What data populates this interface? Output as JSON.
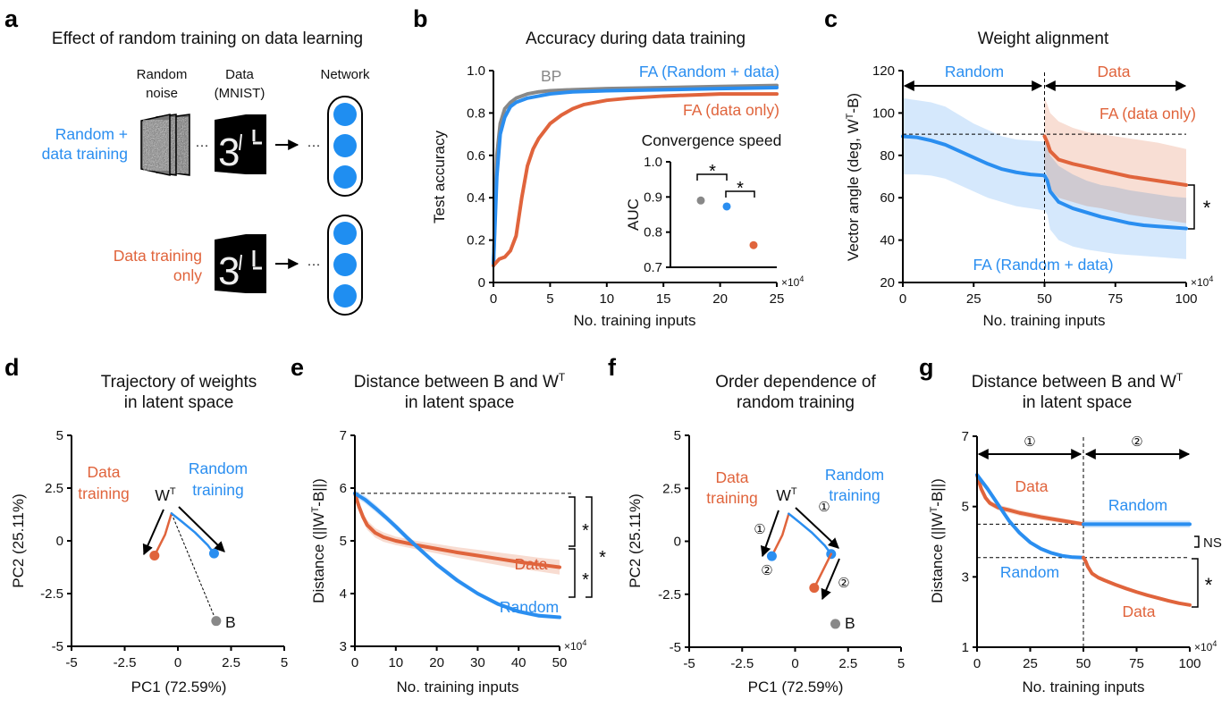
{
  "colors": {
    "blue": "#2a8ef0",
    "orange": "#e0643c",
    "gray": "#888888",
    "blue_band": "#c7e0fb",
    "orange_band": "#f6d3c5"
  },
  "panel_a": {
    "letter": "a",
    "title": "Effect of random training on data learning",
    "col_random_noise": [
      "Random",
      "noise"
    ],
    "col_data": [
      "Data",
      "(MNIST)"
    ],
    "col_network": "Network",
    "row1_label": [
      "Random +",
      "data training"
    ],
    "row2_label": [
      "Data training",
      "only"
    ],
    "ellipsis": "···"
  },
  "chart_data": [
    {
      "panel": "b",
      "type": "line",
      "title": "Accuracy during data training",
      "xlabel": "No. training inputs",
      "ylabel": "Test accuracy",
      "x_multiplier": "×10",
      "x_multiplier_exp": "4",
      "xlim": [
        0,
        25
      ],
      "ylim": [
        0,
        1
      ],
      "xticks": [
        0,
        5,
        10,
        15,
        20,
        25
      ],
      "xtick_labels": [
        "0",
        "5",
        "10",
        "15",
        "20",
        "25"
      ],
      "yticks": [
        0,
        0.2,
        0.4,
        0.6,
        0.8,
        1.0
      ],
      "ytick_labels": [
        "0",
        "0.2",
        "0.4",
        "0.6",
        "0.8",
        "1.0"
      ],
      "series": [
        {
          "name": "BP",
          "color": "gray",
          "x": [
            0,
            0.3,
            0.6,
            1,
            1.5,
            2,
            3,
            4,
            5,
            7,
            10,
            15,
            20,
            25
          ],
          "y": [
            0.08,
            0.6,
            0.75,
            0.82,
            0.85,
            0.87,
            0.89,
            0.9,
            0.905,
            0.91,
            0.915,
            0.92,
            0.925,
            0.93
          ]
        },
        {
          "name": "FA (Random + data)",
          "color": "blue",
          "x": [
            0,
            0.3,
            0.6,
            1,
            1.5,
            2,
            3,
            4,
            5,
            7,
            10,
            15,
            20,
            25
          ],
          "y": [
            0.08,
            0.5,
            0.7,
            0.78,
            0.83,
            0.85,
            0.87,
            0.88,
            0.89,
            0.9,
            0.905,
            0.91,
            0.915,
            0.92
          ]
        },
        {
          "name": "FA (data only)",
          "color": "orange",
          "x": [
            0,
            0.5,
            1,
            1.5,
            2,
            2.5,
            3,
            3.5,
            4,
            5,
            6,
            7,
            8,
            10,
            12,
            15,
            20,
            25
          ],
          "y": [
            0.08,
            0.11,
            0.12,
            0.15,
            0.22,
            0.4,
            0.55,
            0.63,
            0.68,
            0.75,
            0.79,
            0.82,
            0.84,
            0.86,
            0.87,
            0.88,
            0.89,
            0.89
          ]
        }
      ],
      "inset": {
        "title": "Convergence speed",
        "ylabel": "AUC",
        "type": "scatter",
        "ylim": [
          0.7,
          1.0
        ],
        "yticks": [
          0.7,
          0.8,
          0.9,
          1.0
        ],
        "ytick_labels": [
          "0.7",
          "0.8",
          "0.9",
          "1.0"
        ],
        "points": [
          {
            "series": "BP",
            "color": "gray",
            "value": 0.89
          },
          {
            "series": "FA (Random + data)",
            "color": "blue",
            "value": 0.873
          },
          {
            "series": "FA (data only)",
            "color": "orange",
            "value": 0.763
          }
        ],
        "significance": [
          "*",
          "*"
        ]
      }
    },
    {
      "panel": "c",
      "type": "line",
      "title": "Weight alignment",
      "xlabel": "No. training inputs",
      "ylabel": "Vector angle (deg, W",
      "ylabel_sup": "T",
      "ylabel_end": "-B)",
      "x_multiplier": "×10",
      "x_multiplier_exp": "4",
      "xlim": [
        0,
        100
      ],
      "ylim": [
        20,
        120
      ],
      "xticks": [
        0,
        25,
        50,
        75,
        100
      ],
      "xtick_labels": [
        "0",
        "25",
        "50",
        "75",
        "100"
      ],
      "yticks": [
        20,
        40,
        60,
        80,
        100,
        120
      ],
      "ytick_labels": [
        "20",
        "40",
        "60",
        "80",
        "100",
        "120"
      ],
      "reference_line_y": 90,
      "phase_boundary_x": 50,
      "phases": [
        "Random",
        "Data"
      ],
      "series": [
        {
          "name": "FA (Random + data)",
          "color": "blue",
          "x": [
            0,
            5,
            10,
            15,
            20,
            25,
            30,
            35,
            40,
            45,
            50,
            51,
            52,
            55,
            60,
            65,
            70,
            75,
            80,
            85,
            90,
            95,
            100
          ],
          "y": [
            89,
            88.5,
            87,
            85,
            82,
            79,
            76,
            73.5,
            72,
            71,
            70.5,
            68,
            63,
            58,
            55,
            53,
            51,
            49.5,
            48,
            47,
            46.5,
            46,
            45.5
          ],
          "band_hi": [
            107,
            106,
            105,
            103,
            99,
            95,
            92,
            89,
            87.5,
            87,
            86.5,
            84,
            80,
            75,
            71,
            68,
            66,
            65,
            63.5,
            62.5,
            61.5,
            60.5,
            60
          ],
          "band_lo": [
            71,
            71,
            70.5,
            69,
            66,
            63,
            60,
            58,
            56,
            55,
            54,
            52,
            45,
            40,
            37,
            35.5,
            34.5,
            33.5,
            33,
            32.5,
            32,
            31.5,
            31
          ]
        },
        {
          "name": "FA (data only)",
          "color": "orange",
          "x": [
            50,
            51,
            52,
            55,
            60,
            65,
            70,
            75,
            80,
            85,
            90,
            95,
            100
          ],
          "y": [
            89,
            86,
            82,
            78,
            76,
            74.5,
            73,
            71.5,
            70,
            69,
            68,
            67,
            66
          ],
          "band_hi": [
            107,
            104,
            100,
            96,
            93,
            91,
            90,
            89,
            88,
            87,
            86,
            84.5,
            83
          ],
          "band_lo": [
            74,
            70,
            64,
            60,
            58,
            56,
            55,
            53.5,
            52,
            51,
            50,
            49,
            48
          ]
        }
      ],
      "significance": "*"
    },
    {
      "panel": "d",
      "type": "scatter",
      "title": [
        "Trajectory of weights",
        "in latent space"
      ],
      "xlabel": "PC1 (72.59%)",
      "ylabel": "PC2 (25.11%)",
      "xlim": [
        -5,
        5
      ],
      "ylim": [
        -5,
        5
      ],
      "xticks": [
        -5,
        -2.5,
        0,
        2.5,
        5
      ],
      "xtick_labels": [
        "-5",
        "-2.5",
        "0",
        "2.5",
        "5"
      ],
      "yticks": [
        -5,
        -2.5,
        0,
        2.5,
        5
      ],
      "ytick_labels": [
        "-5",
        "-2.5",
        "0",
        "2.5",
        "5"
      ],
      "start_label": "W",
      "start_label_sup": "T",
      "series": [
        {
          "name": "Data training",
          "color": "orange",
          "x": [
            -0.3,
            -0.6,
            -1.1
          ],
          "y": [
            1.3,
            0.3,
            -0.7
          ],
          "end_color": "orange"
        },
        {
          "name": "Random training",
          "color": "blue",
          "x": [
            -0.3,
            0.2,
            0.8,
            1.4,
            1.7
          ],
          "y": [
            1.3,
            0.9,
            0.4,
            -0.2,
            -0.6
          ],
          "end_color": "blue"
        }
      ],
      "target": {
        "label": "B",
        "x": 1.8,
        "y": -3.8,
        "color": "gray"
      }
    },
    {
      "panel": "e",
      "type": "line",
      "title": [
        "Distance between B and W",
        "in latent space"
      ],
      "title_sup": "T",
      "xlabel": "No. training inputs",
      "ylabel": "Distance (||W",
      "ylabel_sup": "T",
      "ylabel_end": "-B||)",
      "x_multiplier": "×10",
      "x_multiplier_exp": "4",
      "xlim": [
        0,
        50
      ],
      "ylim": [
        3,
        7
      ],
      "xticks": [
        0,
        10,
        20,
        30,
        40,
        50
      ],
      "xtick_labels": [
        "0",
        "10",
        "20",
        "30",
        "40",
        "50"
      ],
      "yticks": [
        3,
        4,
        5,
        6,
        7
      ],
      "ytick_labels": [
        "3",
        "4",
        "5",
        "6",
        "7"
      ],
      "reference_line_y": 5.9,
      "series": [
        {
          "name": "Data",
          "color": "orange",
          "x": [
            0,
            1,
            2,
            3,
            5,
            7,
            10,
            15,
            20,
            25,
            30,
            35,
            40,
            45,
            50
          ],
          "y": [
            5.9,
            5.65,
            5.45,
            5.3,
            5.15,
            5.07,
            5.0,
            4.92,
            4.85,
            4.78,
            4.72,
            4.66,
            4.6,
            4.55,
            4.5
          ],
          "band_hi": [
            5.95,
            5.72,
            5.53,
            5.39,
            5.24,
            5.16,
            5.08,
            5.0,
            4.94,
            4.88,
            4.83,
            4.78,
            4.73,
            4.68,
            4.64
          ],
          "band_lo": [
            5.85,
            5.58,
            5.37,
            5.21,
            5.06,
            4.98,
            4.92,
            4.84,
            4.76,
            4.68,
            4.61,
            4.54,
            4.47,
            4.42,
            4.36
          ]
        },
        {
          "name": "Random",
          "color": "blue",
          "x": [
            0,
            2.5,
            5,
            7.5,
            10,
            12.5,
            15,
            20,
            25,
            30,
            35,
            40,
            45,
            50
          ],
          "y": [
            5.9,
            5.78,
            5.62,
            5.45,
            5.27,
            5.08,
            4.9,
            4.55,
            4.25,
            4.0,
            3.8,
            3.66,
            3.58,
            3.55
          ],
          "band_hi": [
            5.97,
            5.85,
            5.69,
            5.51,
            5.33,
            5.14,
            4.95,
            4.6,
            4.3,
            4.04,
            3.84,
            3.7,
            3.62,
            3.58
          ],
          "band_lo": [
            5.83,
            5.71,
            5.55,
            5.39,
            5.21,
            5.02,
            4.85,
            4.5,
            4.2,
            3.96,
            3.76,
            3.62,
            3.54,
            3.52
          ]
        }
      ],
      "significance": [
        "*",
        "*",
        "*"
      ]
    },
    {
      "panel": "f",
      "type": "scatter",
      "title": [
        "Order dependence of",
        "random training"
      ],
      "xlabel": "PC1 (72.59%)",
      "ylabel": "PC2 (25.11%)",
      "xlim": [
        -5,
        5
      ],
      "ylim": [
        -5,
        5
      ],
      "xticks": [
        -5,
        -2.5,
        0,
        2.5,
        5
      ],
      "xtick_labels": [
        "-5",
        "-2.5",
        "0",
        "2.5",
        "5"
      ],
      "yticks": [
        -5,
        -2.5,
        0,
        2.5,
        5
      ],
      "ytick_labels": [
        "-5",
        "-2.5",
        "0",
        "2.5",
        "5"
      ],
      "start_label": "W",
      "start_label_sup": "T",
      "step_labels": [
        "①",
        "②"
      ],
      "series": [
        {
          "name": "Data training",
          "color": "orange",
          "x": [
            -0.3,
            -0.6,
            -1.1
          ],
          "y": [
            1.3,
            0.3,
            -0.7
          ],
          "end_color": "blue"
        },
        {
          "name": "Random training",
          "color": "blue",
          "x": [
            -0.3,
            0.2,
            0.8,
            1.4,
            1.7
          ],
          "y": [
            1.3,
            0.9,
            0.4,
            -0.2,
            -0.6
          ],
          "end_color": "blue"
        },
        {
          "name": "Data training",
          "color": "orange",
          "x": [
            1.7,
            1.3,
            0.9
          ],
          "y": [
            -0.6,
            -1.4,
            -2.2
          ],
          "end_color": "orange"
        }
      ],
      "legend_labels": [
        "Data",
        "training",
        "Random",
        "training"
      ],
      "target": {
        "label": "B",
        "x": 1.9,
        "y": -3.9,
        "color": "gray"
      }
    },
    {
      "panel": "g",
      "type": "line",
      "title": [
        "Distance between B and W",
        "in latent space"
      ],
      "title_sup": "T",
      "xlabel": "No. training inputs",
      "ylabel": "Distance (||W",
      "ylabel_sup": "T",
      "ylabel_end": "-B||)",
      "x_multiplier": "×10",
      "x_multiplier_exp": "4",
      "xlim": [
        0,
        100
      ],
      "ylim": [
        1,
        7
      ],
      "xticks": [
        0,
        25,
        50,
        75,
        100
      ],
      "xtick_labels": [
        "0",
        "25",
        "50",
        "75",
        "100"
      ],
      "yticks": [
        1,
        3,
        5,
        7
      ],
      "ytick_labels": [
        "1",
        "3",
        "5",
        "7"
      ],
      "phase_boundary_x": 50,
      "phases": [
        "①",
        "②"
      ],
      "series": [
        {
          "name": "Data",
          "color": "orange",
          "x": [
            0,
            2,
            4,
            6,
            10,
            15,
            20,
            30,
            40,
            50
          ],
          "y": [
            5.9,
            5.5,
            5.25,
            5.1,
            4.97,
            4.9,
            4.82,
            4.7,
            4.6,
            4.5
          ],
          "band_hi": [
            5.95,
            5.57,
            5.33,
            5.18,
            5.05,
            4.98,
            4.9,
            4.78,
            4.67,
            4.56
          ],
          "band_lo": [
            5.85,
            5.43,
            5.17,
            5.02,
            4.89,
            4.82,
            4.74,
            4.62,
            4.53,
            4.44
          ]
        },
        {
          "name": "Random",
          "color": "blue",
          "x": [
            0,
            5,
            10,
            15,
            20,
            25,
            30,
            35,
            40,
            45,
            50
          ],
          "y": [
            5.9,
            5.5,
            5.05,
            4.6,
            4.25,
            3.98,
            3.8,
            3.68,
            3.6,
            3.56,
            3.55
          ]
        },
        {
          "name": "Random",
          "color": "blue",
          "x": [
            50,
            60,
            70,
            80,
            90,
            100
          ],
          "y": [
            4.5,
            4.5,
            4.5,
            4.5,
            4.5,
            4.5
          ],
          "band_hi": [
            4.6,
            4.6,
            4.6,
            4.6,
            4.6,
            4.6
          ],
          "band_lo": [
            4.4,
            4.4,
            4.4,
            4.4,
            4.4,
            4.4
          ]
        },
        {
          "name": "Data",
          "color": "orange",
          "x": [
            50,
            51,
            52,
            54,
            57,
            60,
            65,
            70,
            75,
            80,
            85,
            90,
            95,
            100
          ],
          "y": [
            3.55,
            3.45,
            3.3,
            3.1,
            2.98,
            2.9,
            2.78,
            2.67,
            2.57,
            2.48,
            2.4,
            2.32,
            2.25,
            2.2
          ]
        }
      ],
      "significance": [
        "NS",
        "*"
      ]
    }
  ]
}
